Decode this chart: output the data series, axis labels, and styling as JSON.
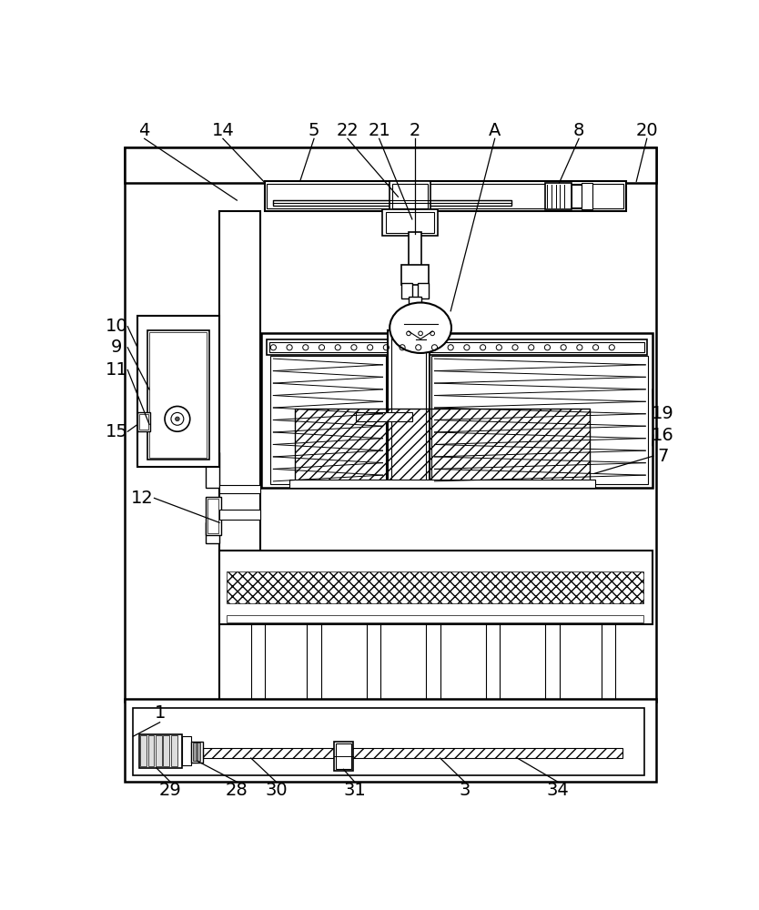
{
  "bg_color": "#ffffff",
  "lc": "#000000",
  "fig_w": 8.34,
  "fig_h": 10.0,
  "dpi": 100
}
